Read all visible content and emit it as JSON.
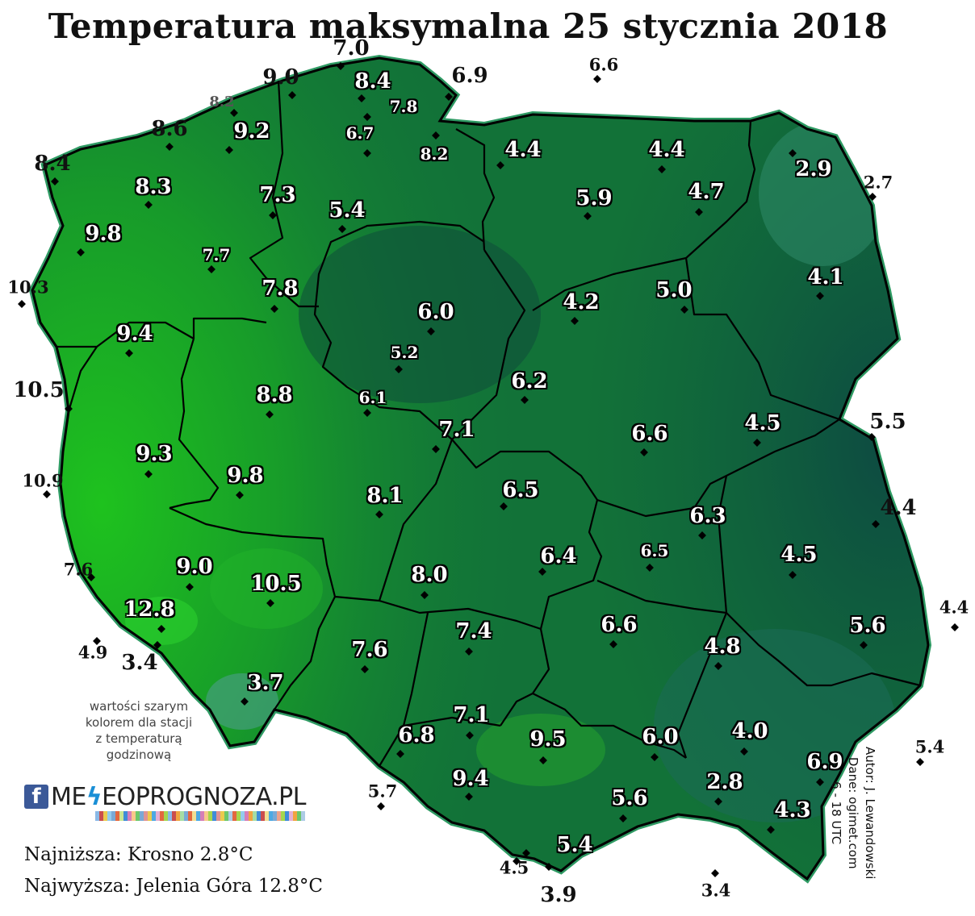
{
  "title": "Temperatura maksymalna 25 stycznia 2018",
  "note": [
    "wartości szarym",
    "kolorem dla stacji",
    "z temperaturą",
    "godzinową"
  ],
  "logo": {
    "fb": "f",
    "brand_a": "ME",
    "brand_b": "EOPROGNOZA.PL",
    "brand_icon": "lightning-bolt-icon"
  },
  "stats": {
    "lowest": "Najniższa: Krosno 2.8°C",
    "highest": "Najwyższa: Jelenia Góra 12.8°C"
  },
  "credits": {
    "author": "Autor: J. Lewandowski",
    "data": "Dane: ogimet.com",
    "period": "6 - 18 UTC"
  },
  "colors": {
    "warm": "#1ec21e",
    "mid": "#137a37",
    "cold": "#0e4a40",
    "border": "#000000",
    "outline": "#2e9a63"
  },
  "stations": [
    {
      "v": "7.0",
      "k": "out big"
    },
    {
      "v": "9.0",
      "k": "out big"
    },
    {
      "v": "6.9",
      "k": "out big"
    },
    {
      "v": "6.6",
      "k": "out"
    },
    {
      "v": "8.2",
      "k": "grey"
    },
    {
      "v": "8.4",
      "k": "in"
    },
    {
      "v": "7.8",
      "k": "in small"
    },
    {
      "v": "8.6",
      "k": "out big"
    },
    {
      "v": "9.2",
      "k": "in"
    },
    {
      "v": "6.7",
      "k": "in small"
    },
    {
      "v": "8.2",
      "k": "in small"
    },
    {
      "v": "4.4",
      "k": "in"
    },
    {
      "v": "4.4",
      "k": "in"
    },
    {
      "v": "8.4",
      "k": "out big"
    },
    {
      "v": "8.3",
      "k": "in"
    },
    {
      "v": "7.3",
      "k": "in"
    },
    {
      "v": "5.4",
      "k": "in"
    },
    {
      "v": "5.9",
      "k": "in"
    },
    {
      "v": "4.7",
      "k": "in"
    },
    {
      "v": "2.9",
      "k": "in"
    },
    {
      "v": "2.7",
      "k": "out"
    },
    {
      "v": "9.8",
      "k": "in"
    },
    {
      "v": "7.7",
      "k": "in small"
    },
    {
      "v": "10.3",
      "k": "out"
    },
    {
      "v": "7.8",
      "k": "in"
    },
    {
      "v": "6.0",
      "k": "in"
    },
    {
      "v": "4.2",
      "k": "in"
    },
    {
      "v": "5.0",
      "k": "in"
    },
    {
      "v": "4.1",
      "k": "in"
    },
    {
      "v": "9.4",
      "k": "in"
    },
    {
      "v": "5.2",
      "k": "in small"
    },
    {
      "v": "10.5",
      "k": "out big"
    },
    {
      "v": "8.8",
      "k": "in"
    },
    {
      "v": "6.1",
      "k": "in small"
    },
    {
      "v": "6.2",
      "k": "in"
    },
    {
      "v": "7.1",
      "k": "in"
    },
    {
      "v": "6.6",
      "k": "in"
    },
    {
      "v": "4.5",
      "k": "in"
    },
    {
      "v": "5.5",
      "k": "out big"
    },
    {
      "v": "9.3",
      "k": "in"
    },
    {
      "v": "10.9",
      "k": "out"
    },
    {
      "v": "9.8",
      "k": "in"
    },
    {
      "v": "8.1",
      "k": "in"
    },
    {
      "v": "6.5",
      "k": "in"
    },
    {
      "v": "6.3",
      "k": "in"
    },
    {
      "v": "4.4",
      "k": "out big"
    },
    {
      "v": "7.6",
      "k": "out"
    },
    {
      "v": "9.0",
      "k": "in"
    },
    {
      "v": "10.5",
      "k": "in"
    },
    {
      "v": "8.0",
      "k": "in"
    },
    {
      "v": "6.4",
      "k": "in"
    },
    {
      "v": "6.5",
      "k": "in small"
    },
    {
      "v": "4.5",
      "k": "in"
    },
    {
      "v": "12.8",
      "k": "in"
    },
    {
      "v": "4.9",
      "k": "out"
    },
    {
      "v": "3.4",
      "k": "out big"
    },
    {
      "v": "7.4",
      "k": "in"
    },
    {
      "v": "6.6",
      "k": "in"
    },
    {
      "v": "4.8",
      "k": "in"
    },
    {
      "v": "5.6",
      "k": "in"
    },
    {
      "v": "4.4",
      "k": "out"
    },
    {
      "v": "7.6",
      "k": "in"
    },
    {
      "v": "3.7",
      "k": "in"
    },
    {
      "v": "7.1",
      "k": "in"
    },
    {
      "v": "6.8",
      "k": "in"
    },
    {
      "v": "9.5",
      "k": "in"
    },
    {
      "v": "6.0",
      "k": "in"
    },
    {
      "v": "4.0",
      "k": "in"
    },
    {
      "v": "5.4",
      "k": "out"
    },
    {
      "v": "6.9",
      "k": "in"
    },
    {
      "v": "9.4",
      "k": "in"
    },
    {
      "v": "2.8",
      "k": "in"
    },
    {
      "v": "5.7",
      "k": "out"
    },
    {
      "v": "5.6",
      "k": "in"
    },
    {
      "v": "4.3",
      "k": "in"
    },
    {
      "v": "5.4",
      "k": "in"
    },
    {
      "v": "4.5",
      "k": "out"
    },
    {
      "v": "3.9",
      "k": "out big"
    },
    {
      "v": "3.4",
      "k": "out"
    }
  ]
}
